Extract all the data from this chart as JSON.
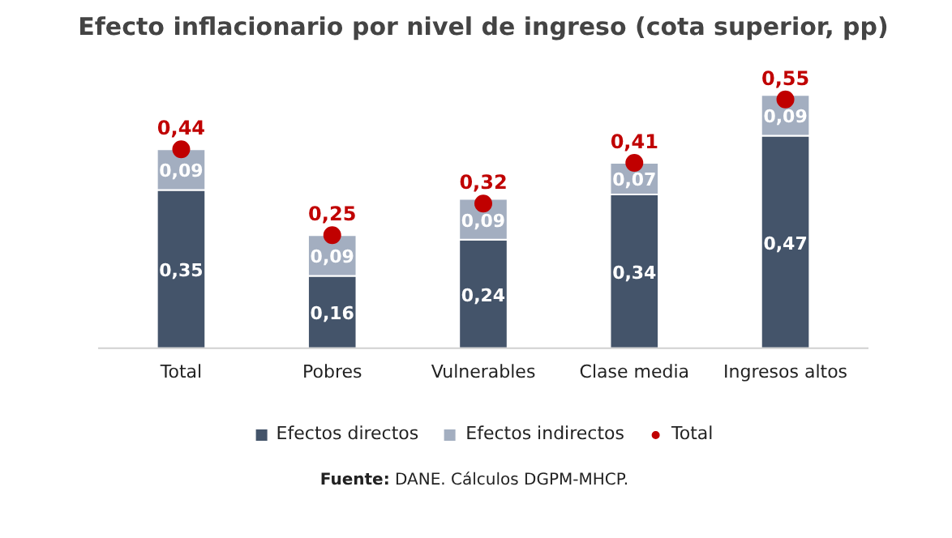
{
  "chart_data": {
    "type": "bar",
    "title": "Efecto inflacionario por nivel de ingreso (cota superior, pp)",
    "categories": [
      "Total",
      "Pobres",
      "Vulnerables",
      "Clase media",
      "Ingresos altos"
    ],
    "stacked": true,
    "series": [
      {
        "name": "Efectos directos",
        "color": "#44546a",
        "values": [
          0.35,
          0.16,
          0.24,
          0.34,
          0.47
        ],
        "value_labels": [
          "0,35",
          "0,16",
          "0,24",
          "0,34",
          "0,47"
        ]
      },
      {
        "name": "Efectos indirectos",
        "color": "#a3aec0",
        "values": [
          0.09,
          0.09,
          0.09,
          0.07,
          0.09
        ],
        "value_labels": [
          "0,09",
          "0,09",
          "0,09",
          "0,07",
          "0,09"
        ]
      },
      {
        "name": "Total",
        "type": "scatter",
        "color": "#c00000",
        "values": [
          0.44,
          0.25,
          0.32,
          0.41,
          0.55
        ],
        "value_labels": [
          "0,44",
          "0,25",
          "0,32",
          "0,41",
          "0,55"
        ]
      }
    ],
    "legend": "bottom",
    "annotations": [
      "Fuente: DANE. Cálculos DGPM-MHCP."
    ]
  }
}
